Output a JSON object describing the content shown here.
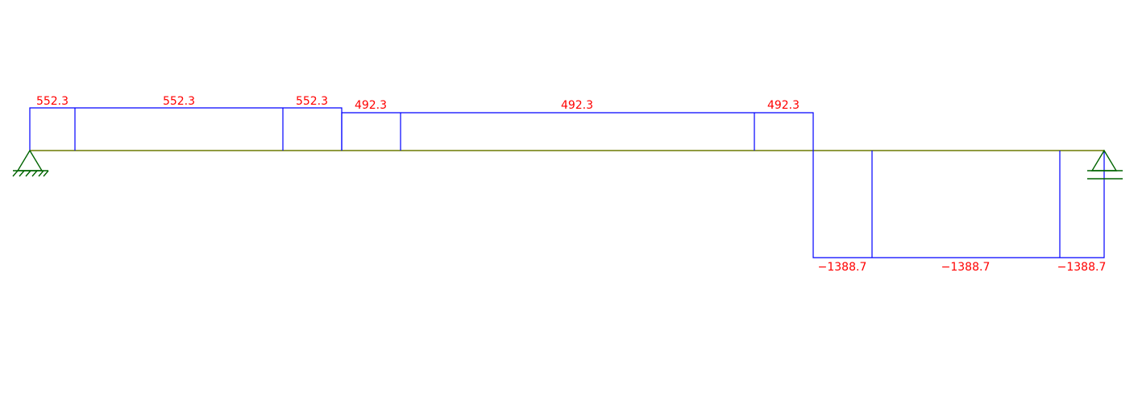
{
  "diagram": {
    "colors": {
      "diagram_line": "#0000ff",
      "beam": "#6b7a00",
      "labels": "#ff0000",
      "supports": "#006400"
    },
    "segments": [
      {
        "label": "552.3"
      },
      {
        "label": "552.3"
      },
      {
        "label": "552.3"
      },
      {
        "label": "492.3"
      },
      {
        "label": "492.3"
      },
      {
        "label": "492.3"
      },
      {
        "label": "−1388.7"
      },
      {
        "label": "−1388.7"
      },
      {
        "label": "−1388.7"
      }
    ],
    "supports": [
      {
        "type": "pinned-support-icon"
      },
      {
        "type": "roller-support-icon"
      }
    ]
  }
}
